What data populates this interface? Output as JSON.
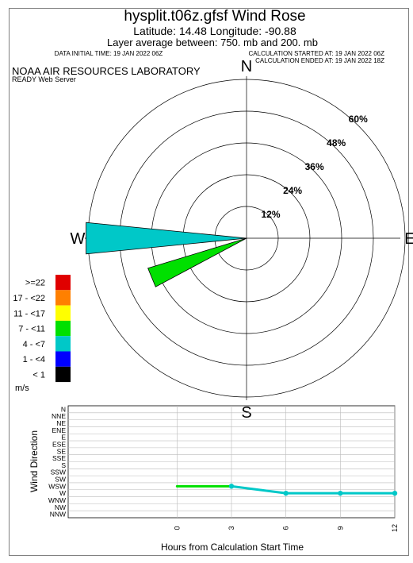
{
  "header": {
    "title": "hysplit.t06z.gfsf Wind Rose",
    "latlon": "Latitude: 14.48 Longitude: -90.88",
    "layer": "Layer average between:  750. mb   and  200. mb",
    "initial_time": "DATA INITIAL TIME: 19 JAN 2022 06Z",
    "calc_started": "CALCULATION STARTED AT: 19 JAN 2022 06Z",
    "calc_ended": "CALCULATION ENDED AT: 19 JAN 2022 18Z"
  },
  "org": {
    "name": "NOAA AIR RESOURCES LABORATORY",
    "server": "READY Web Server"
  },
  "colors": {
    "speed_ge22": "#e00000",
    "speed_17_22": "#ff8000",
    "speed_11_17": "#ffff00",
    "speed_7_11": "#00e000",
    "speed_4_7": "#00c8c8",
    "speed_1_4": "#0000ff",
    "speed_lt1": "#000000"
  },
  "chart_data": [
    {
      "type": "wind rose",
      "compass_labels": [
        "N",
        "E",
        "S",
        "W"
      ],
      "ring_labels": [
        "12%",
        "24%",
        "36%",
        "48%",
        "60%"
      ],
      "rings_percent": [
        12,
        24,
        36,
        48,
        60
      ],
      "petals": [
        {
          "direction": "W",
          "speed_class": "4 - <7",
          "frequency_percent": 61
        },
        {
          "direction": "WSW",
          "speed_class": "7 - <11",
          "frequency_percent": 39
        }
      ],
      "legend": {
        "units": "m/s",
        "classes": [
          {
            "label": ">=22",
            "color_key": "speed_ge22"
          },
          {
            "label": "17 - <22",
            "color_key": "speed_17_22"
          },
          {
            "label": "11 - <17",
            "color_key": "speed_11_17"
          },
          {
            "label": "7 - <11",
            "color_key": "speed_7_11"
          },
          {
            "label": "4 - <7",
            "color_key": "speed_4_7"
          },
          {
            "label": "1 - <4",
            "color_key": "speed_1_4"
          },
          {
            "label": "< 1",
            "color_key": "speed_lt1"
          }
        ]
      }
    },
    {
      "type": "line",
      "xlabel": "Hours from Calculation Start Time",
      "ylabel": "Wind Direction",
      "x_ticks": [
        "0",
        "3",
        "6",
        "9",
        "12"
      ],
      "xlim": [
        -6,
        12
      ],
      "y_categories": [
        "N",
        "NNE",
        "NE",
        "ENE",
        "E",
        "ESE",
        "SE",
        "SSE",
        "S",
        "SSW",
        "SW",
        "WSW",
        "W",
        "WNW",
        "NW",
        "NNW"
      ],
      "grid": true,
      "points": [
        {
          "hour": 0,
          "direction": "WSW",
          "speed_class": "7 - <11"
        },
        {
          "hour": 3,
          "direction": "WSW",
          "speed_class": "4 - <7"
        },
        {
          "hour": 6,
          "direction": "W",
          "speed_class": "4 - <7"
        },
        {
          "hour": 9,
          "direction": "W",
          "speed_class": "4 - <7"
        },
        {
          "hour": 12,
          "direction": "W",
          "speed_class": "4 - <7"
        }
      ]
    }
  ]
}
